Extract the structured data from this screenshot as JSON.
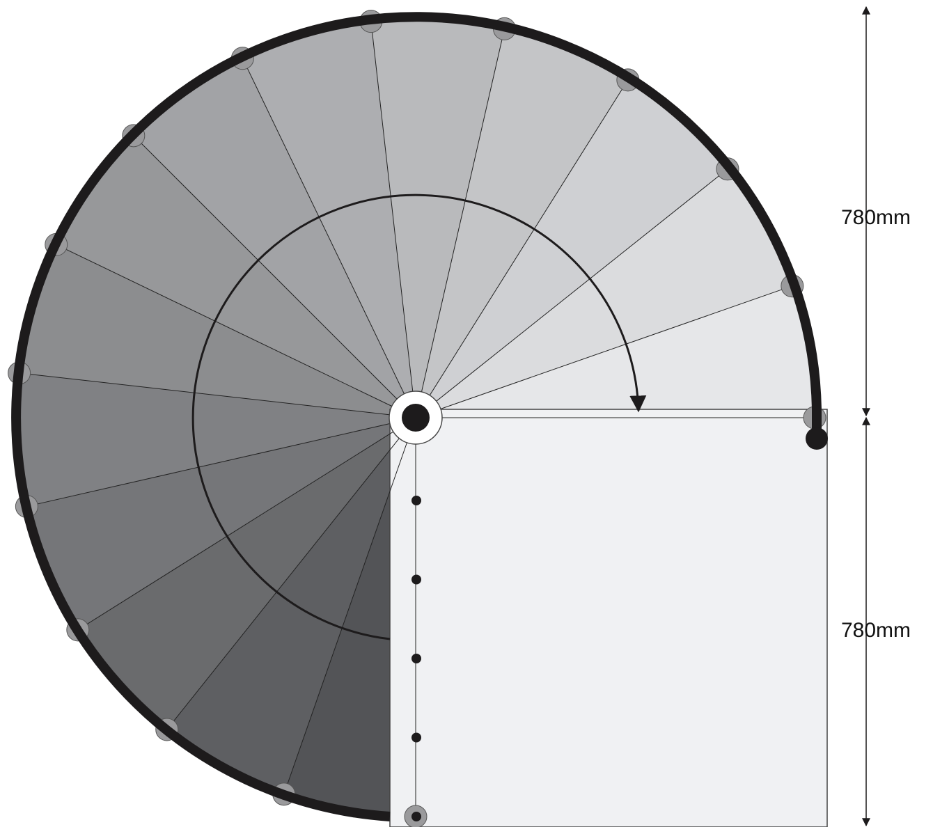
{
  "dimensions": {
    "upper_label": "780mm",
    "lower_label": "780mm"
  },
  "stair": {
    "tread_count": 14,
    "landing_post_count": 5,
    "rotation_direction": "clockwise"
  },
  "colors": {
    "tread_lightest": "#e6e7e9",
    "tread_darkest": "#535457",
    "landing": "#f0f1f3",
    "handrail": "#1d1b1c",
    "line": "#222222"
  }
}
